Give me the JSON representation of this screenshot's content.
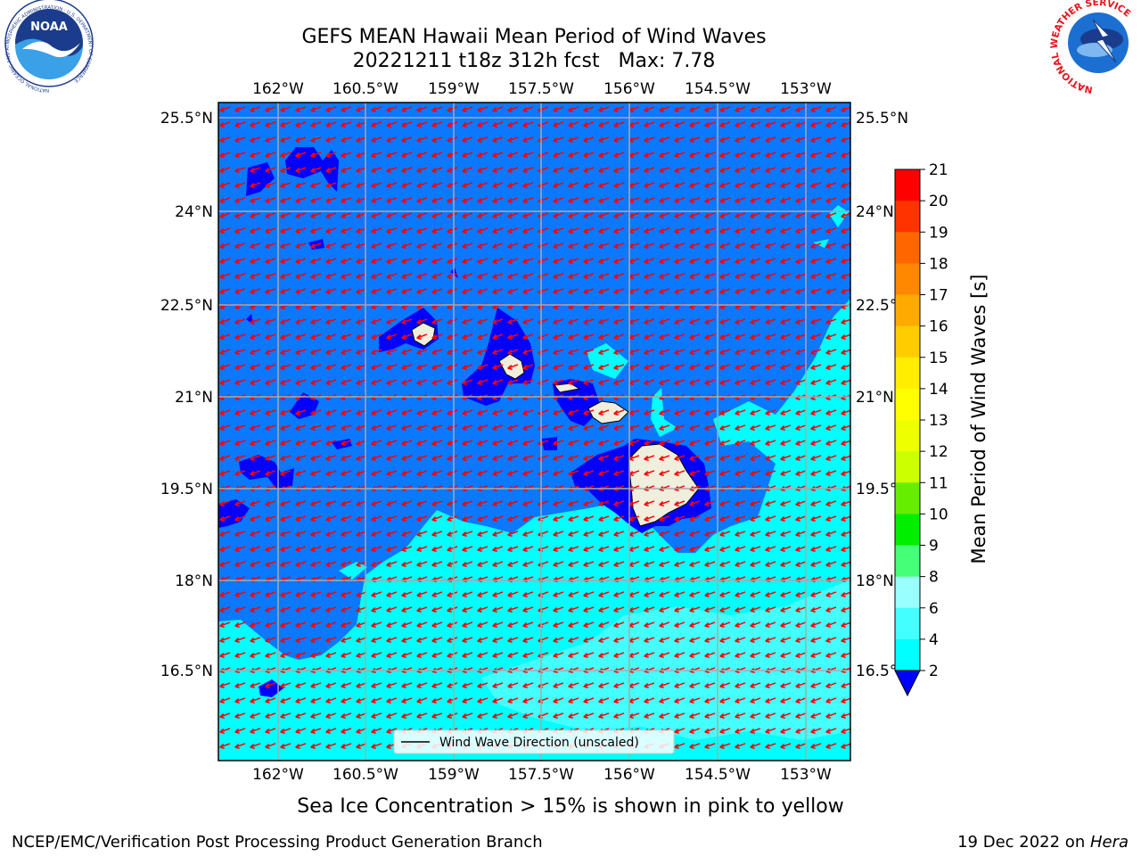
{
  "header": {
    "title_line1": "GEFS MEAN Hawaii Mean Period of Wind Waves",
    "title_line2": "20221211 t18z 312h fcst   Max: 7.78"
  },
  "logos": {
    "noaa_text": "NOAA",
    "noaa_ring_text": "NATIONAL OCEANIC AND ATMOSPHERIC ADMINISTRATION · U.S. DEPARTMENT OF COMMERCE",
    "nws_ring_text": "NATIONAL WEATHER SERVICE"
  },
  "map": {
    "lon_ticks": [
      "162°W",
      "160.5°W",
      "159°W",
      "157.5°W",
      "156°W",
      "154.5°W",
      "153°W"
    ],
    "lat_ticks": [
      "25.5°N",
      "24°N",
      "22.5°N",
      "21°N",
      "19.5°N",
      "18°N",
      "16.5°N"
    ],
    "legend_label": "Wind Wave Direction (unscaled)",
    "colors": {
      "ocean_2_4": "#0a78ff",
      "ocean_below_2": "#0000ff",
      "ocean_4_6": "#00ffff",
      "ocean_6_8": "#44ffff",
      "land": "#f0eedc",
      "arrow": "#ff0000",
      "grid": "#a9a9a9"
    }
  },
  "colorbar": {
    "label": "Mean Period of Wind Waves [s]",
    "ticks": [
      "21",
      "20",
      "19",
      "18",
      "17",
      "16",
      "15",
      "14",
      "13",
      "12",
      "11",
      "10",
      "9",
      "8",
      "6",
      "4",
      "2"
    ],
    "colors": [
      "#ff0000",
      "#ff3300",
      "#ff6600",
      "#ff8800",
      "#ffaa00",
      "#ffcc00",
      "#ffee00",
      "#ffff00",
      "#eeff00",
      "#ccff00",
      "#66ee00",
      "#00ee00",
      "#44ff77",
      "#99ffff",
      "#44ffff",
      "#00ffff",
      "#0a78ff"
    ],
    "under_color": "#0000ff"
  },
  "footer": {
    "note": "Sea Ice Concentration > 15% is shown in pink to yellow",
    "branch": "NCEP/EMC/Verification Post Processing Product Generation Branch",
    "date_prefix": "19 Dec 2022 on ",
    "machine": "Hera"
  }
}
